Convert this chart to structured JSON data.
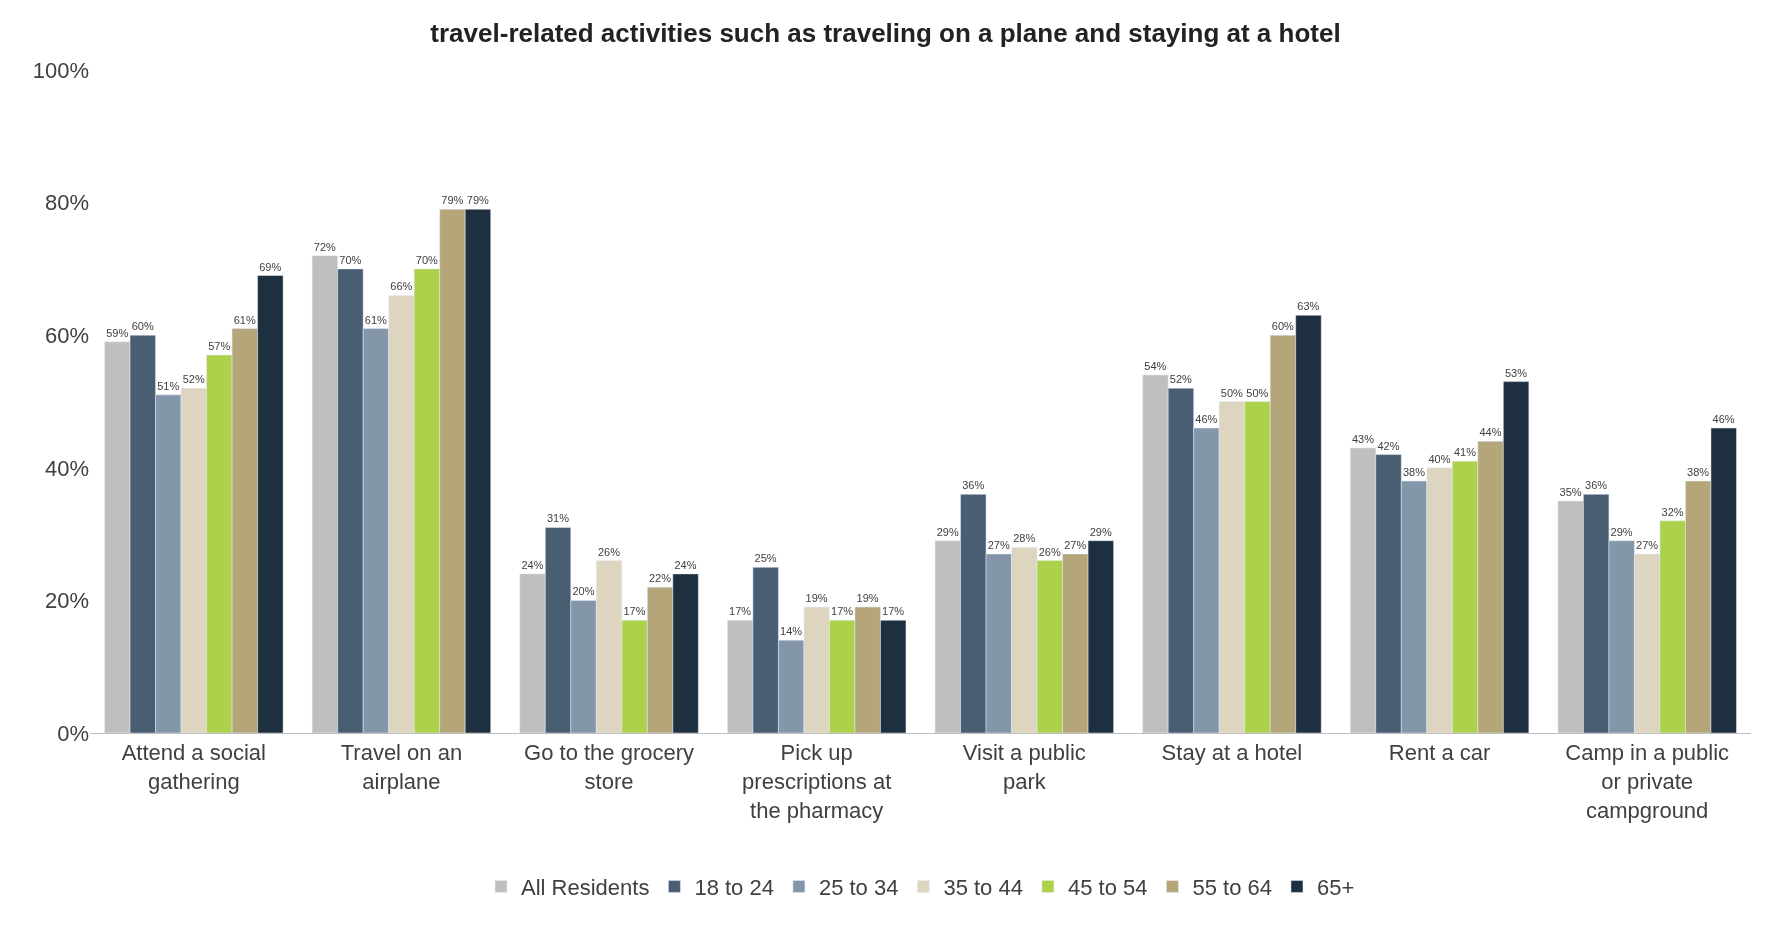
{
  "chart_data": {
    "type": "bar",
    "title": "travel-related activities such as traveling on a plane and staying at a hotel",
    "categories": [
      "Attend a social gathering",
      "Travel on an airplane",
      "Go to the grocery store",
      "Pick up prescriptions at the pharmacy",
      "Visit a public park",
      "Stay at a hotel",
      "Rent a car",
      "Camp in a public or private campground"
    ],
    "series": [
      {
        "name": "All Residents",
        "color": "#bfbfbf",
        "values": [
          59,
          72,
          24,
          17,
          29,
          54,
          43,
          35
        ],
        "value_labels": [
          "59%",
          "72%",
          "24%",
          "17%",
          "29%",
          "54%",
          "43%",
          "35%"
        ]
      },
      {
        "name": "18 to 24",
        "color": "#4a5e73",
        "values": [
          60,
          70,
          31,
          25,
          36,
          52,
          42,
          36
        ],
        "value_labels": [
          "60%",
          "70%",
          "31%",
          "25%",
          "36%",
          "52%",
          "42%",
          "36%"
        ]
      },
      {
        "name": "25 to 34",
        "color": "#8496a9",
        "values": [
          51,
          61,
          20,
          14,
          27,
          46,
          38,
          29
        ],
        "value_labels": [
          "51%",
          "61%",
          "20%",
          "14%",
          "27%",
          "46%",
          "38%",
          "29%"
        ]
      },
      {
        "name": "35 to 44",
        "color": "#ddd5c0",
        "values": [
          52,
          66,
          26,
          19,
          28,
          50,
          40,
          27
        ],
        "value_labels": [
          "52%",
          "66%",
          "26%",
          "19%",
          "28%",
          "50%",
          "40%",
          "27%"
        ]
      },
      {
        "name": "45 to 54",
        "color": "#acd14a",
        "values": [
          57,
          70,
          17,
          17,
          26,
          50,
          41,
          32
        ],
        "value_labels": [
          "57%",
          "70%",
          "17%",
          "17%",
          "26%",
          "50%",
          "41%",
          "32%"
        ]
      },
      {
        "name": "55 to 64",
        "color": "#b5a67a",
        "values": [
          61,
          79,
          22,
          19,
          27,
          60,
          44,
          38
        ],
        "value_labels": [
          "61%",
          "79%",
          "22%",
          "19%",
          "27%",
          "60%",
          "44%",
          "38%"
        ]
      },
      {
        "name": "65+",
        "color": "#1e2f40",
        "values": [
          69,
          79,
          24,
          17,
          29,
          63,
          53,
          46
        ],
        "value_labels": [
          "69%",
          "79%",
          "24%",
          "17%",
          "29%",
          "63%",
          "53%",
          "46%"
        ]
      }
    ],
    "ylim": [
      0,
      100
    ],
    "yticks": [
      {
        "value": 0,
        "label": "0%"
      },
      {
        "value": 20,
        "label": "20%"
      },
      {
        "value": 40,
        "label": "40%"
      },
      {
        "value": 60,
        "label": "60%"
      },
      {
        "value": 80,
        "label": "80%"
      },
      {
        "value": 100,
        "label": "100%"
      }
    ],
    "legend": "bottom"
  }
}
